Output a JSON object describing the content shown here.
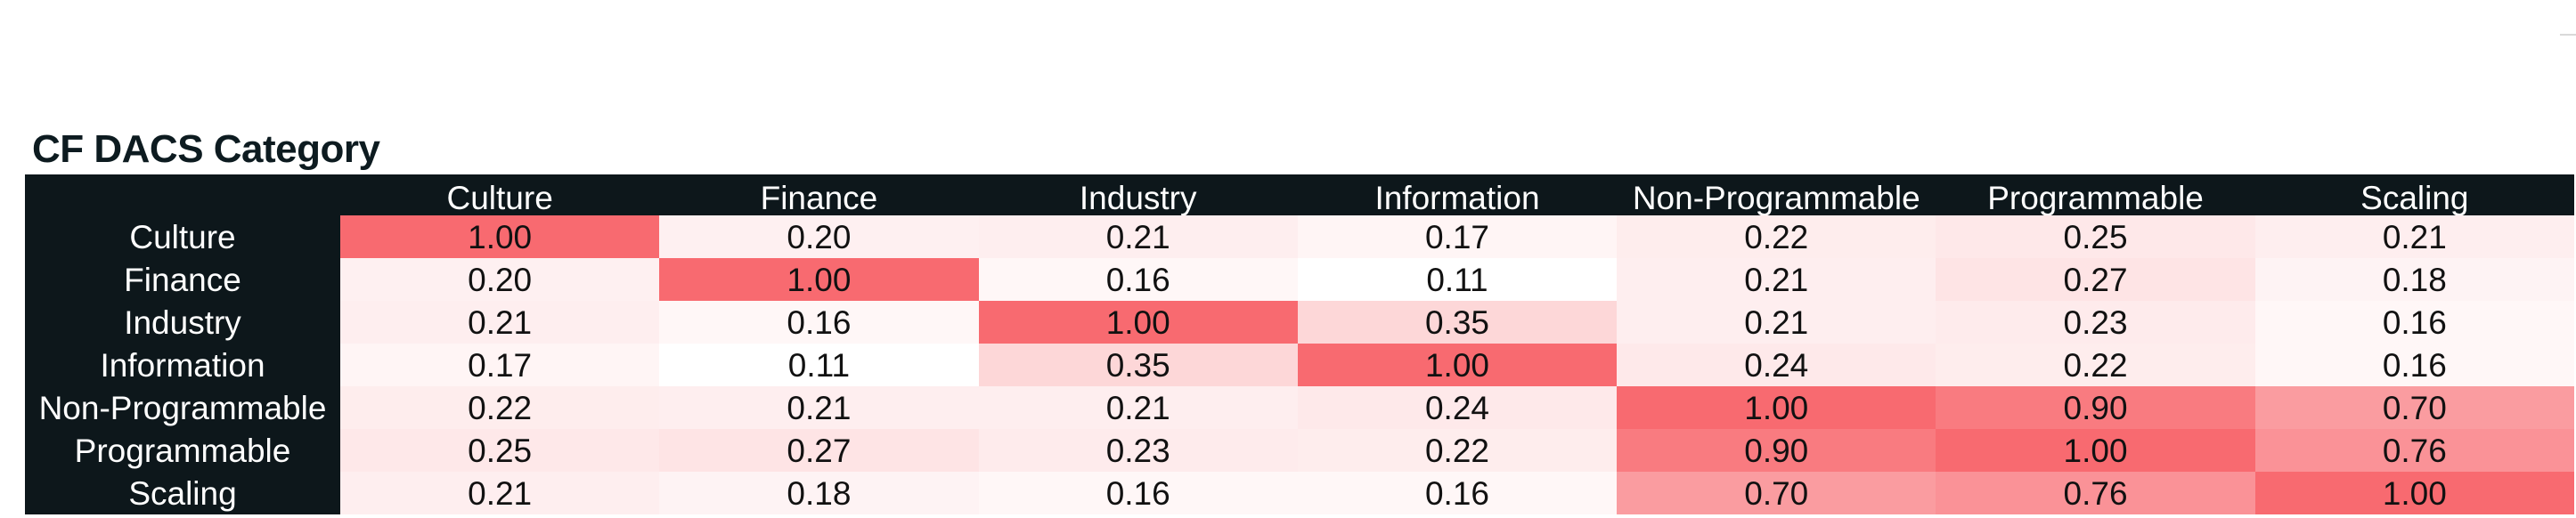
{
  "title": "CF DACS Category",
  "chart_data": {
    "type": "heatmap",
    "title": "CF DACS Category",
    "x_categories": [
      "Culture",
      "Finance",
      "Industry",
      "Information",
      "Non-Programmable",
      "Programmable",
      "Scaling"
    ],
    "y_categories": [
      "Culture",
      "Finance",
      "Industry",
      "Information",
      "Non-Programmable",
      "Programmable",
      "Scaling"
    ],
    "values": [
      [
        1.0,
        0.2,
        0.21,
        0.17,
        0.22,
        0.25,
        0.21
      ],
      [
        0.2,
        1.0,
        0.16,
        0.11,
        0.21,
        0.27,
        0.18
      ],
      [
        0.21,
        0.16,
        1.0,
        0.35,
        0.21,
        0.23,
        0.16
      ],
      [
        0.17,
        0.11,
        0.35,
        1.0,
        0.24,
        0.22,
        0.16
      ],
      [
        0.22,
        0.21,
        0.21,
        0.24,
        1.0,
        0.9,
        0.7
      ],
      [
        0.25,
        0.27,
        0.23,
        0.22,
        0.9,
        1.0,
        0.76
      ],
      [
        0.21,
        0.18,
        0.16,
        0.16,
        0.7,
        0.76,
        1.0
      ]
    ],
    "value_format": "2 decimals",
    "color_scale": {
      "low_color": "#ffffff",
      "high_color": "#f86a70"
    },
    "header_background": "#0d171b",
    "header_text_color": "#ffffff"
  }
}
